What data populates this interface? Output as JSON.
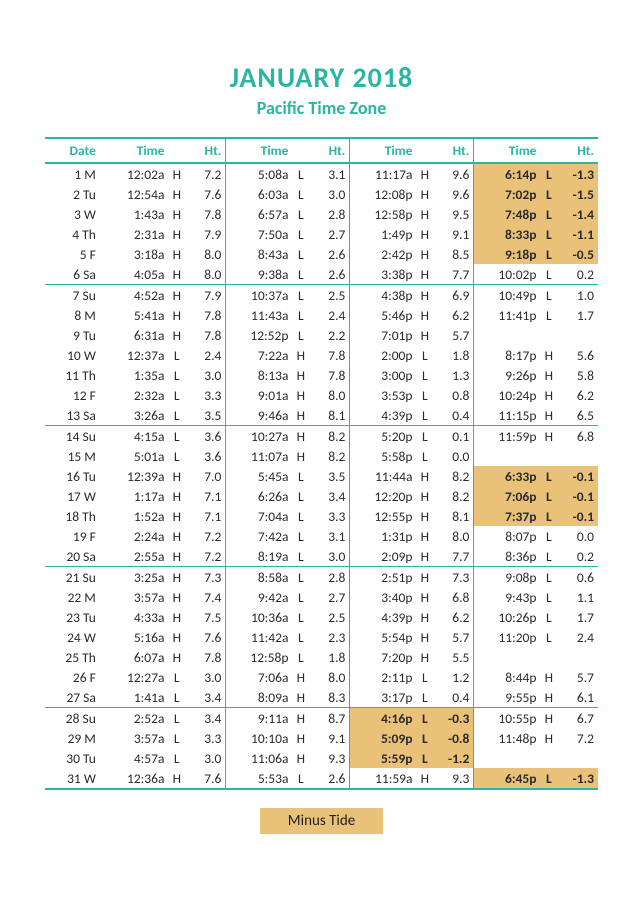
{
  "colors": {
    "accent": "#2bb6a3",
    "highlight": "#e9c179",
    "text": "#2a2a2a",
    "background": "#ffffff"
  },
  "header": {
    "month": "JANUARY 2018",
    "timezone": "Pacific Time Zone"
  },
  "columns": [
    "Date",
    "Time",
    "",
    "Ht.",
    "Time",
    "",
    "Ht.",
    "Time",
    "",
    "Ht.",
    "Time",
    "",
    "Ht."
  ],
  "legend": "Minus Tide",
  "week_breaks_after": [
    6,
    13,
    20,
    27,
    31
  ],
  "rows": [
    {
      "d": "1 M",
      "t": [
        [
          "12:02a",
          "H",
          "7.2"
        ],
        [
          "5:08a",
          "L",
          "3.1"
        ],
        [
          "11:17a",
          "H",
          "9.6"
        ],
        [
          "6:14p",
          "L",
          "-1.3",
          true
        ]
      ]
    },
    {
      "d": "2 Tu",
      "t": [
        [
          "12:54a",
          "H",
          "7.6"
        ],
        [
          "6:03a",
          "L",
          "3.0"
        ],
        [
          "12:08p",
          "H",
          "9.6"
        ],
        [
          "7:02p",
          "L",
          "-1.5",
          true
        ]
      ]
    },
    {
      "d": "3 W",
      "t": [
        [
          "1:43a",
          "H",
          "7.8"
        ],
        [
          "6:57a",
          "L",
          "2.8"
        ],
        [
          "12:58p",
          "H",
          "9.5"
        ],
        [
          "7:48p",
          "L",
          "-1.4",
          true
        ]
      ]
    },
    {
      "d": "4 Th",
      "t": [
        [
          "2:31a",
          "H",
          "7.9"
        ],
        [
          "7:50a",
          "L",
          "2.7"
        ],
        [
          "1:49p",
          "H",
          "9.1"
        ],
        [
          "8:33p",
          "L",
          "-1.1",
          true
        ]
      ]
    },
    {
      "d": "5 F",
      "t": [
        [
          "3:18a",
          "H",
          "8.0"
        ],
        [
          "8:43a",
          "L",
          "2.6"
        ],
        [
          "2:42p",
          "H",
          "8.5"
        ],
        [
          "9:18p",
          "L",
          "-0.5",
          true
        ]
      ]
    },
    {
      "d": "6 Sa",
      "t": [
        [
          "4:05a",
          "H",
          "8.0"
        ],
        [
          "9:38a",
          "L",
          "2.6"
        ],
        [
          "3:38p",
          "H",
          "7.7"
        ],
        [
          "10:02p",
          "L",
          "0.2"
        ]
      ]
    },
    {
      "d": "7 Su",
      "t": [
        [
          "4:52a",
          "H",
          "7.9"
        ],
        [
          "10:37a",
          "L",
          "2.5"
        ],
        [
          "4:38p",
          "H",
          "6.9"
        ],
        [
          "10:49p",
          "L",
          "1.0"
        ]
      ]
    },
    {
      "d": "8 M",
      "t": [
        [
          "5:41a",
          "H",
          "7.8"
        ],
        [
          "11:43a",
          "L",
          "2.4"
        ],
        [
          "5:46p",
          "H",
          "6.2"
        ],
        [
          "11:41p",
          "L",
          "1.7"
        ]
      ]
    },
    {
      "d": "9 Tu",
      "t": [
        [
          "6:31a",
          "H",
          "7.8"
        ],
        [
          "12:52p",
          "L",
          "2.2"
        ],
        [
          "7:01p",
          "H",
          "5.7"
        ],
        [
          "",
          "",
          ""
        ]
      ]
    },
    {
      "d": "10 W",
      "t": [
        [
          "12:37a",
          "L",
          "2.4"
        ],
        [
          "7:22a",
          "H",
          "7.8"
        ],
        [
          "2:00p",
          "L",
          "1.8"
        ],
        [
          "8:17p",
          "H",
          "5.6"
        ]
      ]
    },
    {
      "d": "11 Th",
      "t": [
        [
          "1:35a",
          "L",
          "3.0"
        ],
        [
          "8:13a",
          "H",
          "7.8"
        ],
        [
          "3:00p",
          "L",
          "1.3"
        ],
        [
          "9:26p",
          "H",
          "5.8"
        ]
      ]
    },
    {
      "d": "12 F",
      "t": [
        [
          "2:32a",
          "L",
          "3.3"
        ],
        [
          "9:01a",
          "H",
          "8.0"
        ],
        [
          "3:53p",
          "L",
          "0.8"
        ],
        [
          "10:24p",
          "H",
          "6.2"
        ]
      ]
    },
    {
      "d": "13 Sa",
      "t": [
        [
          "3:26a",
          "L",
          "3.5"
        ],
        [
          "9:46a",
          "H",
          "8.1"
        ],
        [
          "4:39p",
          "L",
          "0.4"
        ],
        [
          "11:15p",
          "H",
          "6.5"
        ]
      ]
    },
    {
      "d": "14 Su",
      "t": [
        [
          "4:15a",
          "L",
          "3.6"
        ],
        [
          "10:27a",
          "H",
          "8.2"
        ],
        [
          "5:20p",
          "L",
          "0.1"
        ],
        [
          "11:59p",
          "H",
          "6.8"
        ]
      ]
    },
    {
      "d": "15 M",
      "t": [
        [
          "5:01a",
          "L",
          "3.6"
        ],
        [
          "11:07a",
          "H",
          "8.2"
        ],
        [
          "5:58p",
          "L",
          "0.0"
        ],
        [
          "",
          "",
          ""
        ]
      ]
    },
    {
      "d": "16 Tu",
      "t": [
        [
          "12:39a",
          "H",
          "7.0"
        ],
        [
          "5:45a",
          "L",
          "3.5"
        ],
        [
          "11:44a",
          "H",
          "8.2"
        ],
        [
          "6:33p",
          "L",
          "-0.1",
          true
        ]
      ]
    },
    {
      "d": "17 W",
      "t": [
        [
          "1:17a",
          "H",
          "7.1"
        ],
        [
          "6:26a",
          "L",
          "3.4"
        ],
        [
          "12:20p",
          "H",
          "8.2"
        ],
        [
          "7:06p",
          "L",
          "-0.1",
          true
        ]
      ]
    },
    {
      "d": "18 Th",
      "t": [
        [
          "1:52a",
          "H",
          "7.1"
        ],
        [
          "7:04a",
          "L",
          "3.3"
        ],
        [
          "12:55p",
          "H",
          "8.1"
        ],
        [
          "7:37p",
          "L",
          "-0.1",
          true
        ]
      ]
    },
    {
      "d": "19 F",
      "t": [
        [
          "2:24a",
          "H",
          "7.2"
        ],
        [
          "7:42a",
          "L",
          "3.1"
        ],
        [
          "1:31p",
          "H",
          "8.0"
        ],
        [
          "8:07p",
          "L",
          "0.0"
        ]
      ]
    },
    {
      "d": "20 Sa",
      "t": [
        [
          "2:55a",
          "H",
          "7.2"
        ],
        [
          "8:19a",
          "L",
          "3.0"
        ],
        [
          "2:09p",
          "H",
          "7.7"
        ],
        [
          "8:36p",
          "L",
          "0.2"
        ]
      ]
    },
    {
      "d": "21 Su",
      "t": [
        [
          "3:25a",
          "H",
          "7.3"
        ],
        [
          "8:58a",
          "L",
          "2.8"
        ],
        [
          "2:51p",
          "H",
          "7.3"
        ],
        [
          "9:08p",
          "L",
          "0.6"
        ]
      ]
    },
    {
      "d": "22 M",
      "t": [
        [
          "3:57a",
          "H",
          "7.4"
        ],
        [
          "9:42a",
          "L",
          "2.7"
        ],
        [
          "3:40p",
          "H",
          "6.8"
        ],
        [
          "9:43p",
          "L",
          "1.1"
        ]
      ]
    },
    {
      "d": "23 Tu",
      "t": [
        [
          "4:33a",
          "H",
          "7.5"
        ],
        [
          "10:36a",
          "L",
          "2.5"
        ],
        [
          "4:39p",
          "H",
          "6.2"
        ],
        [
          "10:26p",
          "L",
          "1.7"
        ]
      ]
    },
    {
      "d": "24 W",
      "t": [
        [
          "5:16a",
          "H",
          "7.6"
        ],
        [
          "11:42a",
          "L",
          "2.3"
        ],
        [
          "5:54p",
          "H",
          "5.7"
        ],
        [
          "11:20p",
          "L",
          "2.4"
        ]
      ]
    },
    {
      "d": "25 Th",
      "t": [
        [
          "6:07a",
          "H",
          "7.8"
        ],
        [
          "12:58p",
          "L",
          "1.8"
        ],
        [
          "7:20p",
          "H",
          "5.5"
        ],
        [
          "",
          "",
          ""
        ]
      ]
    },
    {
      "d": "26 F",
      "t": [
        [
          "12:27a",
          "L",
          "3.0"
        ],
        [
          "7:06a",
          "H",
          "8.0"
        ],
        [
          "2:11p",
          "L",
          "1.2"
        ],
        [
          "8:44p",
          "H",
          "5.7"
        ]
      ]
    },
    {
      "d": "27 Sa",
      "t": [
        [
          "1:41a",
          "L",
          "3.4"
        ],
        [
          "8:09a",
          "H",
          "8.3"
        ],
        [
          "3:17p",
          "L",
          "0.4"
        ],
        [
          "9:55p",
          "H",
          "6.1"
        ]
      ]
    },
    {
      "d": "28 Su",
      "t": [
        [
          "2:52a",
          "L",
          "3.4"
        ],
        [
          "9:11a",
          "H",
          "8.7"
        ],
        [
          "4:16p",
          "L",
          "-0.3",
          true
        ],
        [
          "10:55p",
          "H",
          "6.7"
        ]
      ]
    },
    {
      "d": "29 M",
      "t": [
        [
          "3:57a",
          "L",
          "3.3"
        ],
        [
          "10:10a",
          "H",
          "9.1"
        ],
        [
          "5:09p",
          "L",
          "-0.8",
          true
        ],
        [
          "11:48p",
          "H",
          "7.2"
        ]
      ]
    },
    {
      "d": "30 Tu",
      "t": [
        [
          "4:57a",
          "L",
          "3.0"
        ],
        [
          "11:06a",
          "H",
          "9.3"
        ],
        [
          "5:59p",
          "L",
          "-1.2",
          true
        ],
        [
          "",
          "",
          ""
        ]
      ]
    },
    {
      "d": "31 W",
      "t": [
        [
          "12:36a",
          "H",
          "7.6"
        ],
        [
          "5:53a",
          "L",
          "2.6"
        ],
        [
          "11:59a",
          "H",
          "9.3"
        ],
        [
          "6:45p",
          "L",
          "-1.3",
          true
        ]
      ]
    }
  ]
}
